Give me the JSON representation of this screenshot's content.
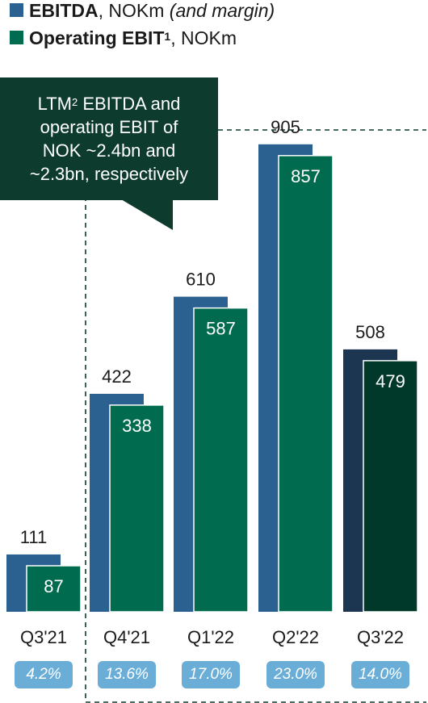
{
  "legend": {
    "ebitda": {
      "bold": "EBITDA",
      "rest": ", NOKm ",
      "italic": "(and margin)",
      "color": "#2b6190"
    },
    "ebit": {
      "bold": "Operating EBIT",
      "sup": "1",
      "rest": ", NOKm",
      "color": "#006b4e"
    }
  },
  "callout": {
    "l1a": "LTM",
    "l1sup": "2",
    "l1b": " EBITDA and",
    "l2": "operating EBIT of",
    "l3": "NOK ~2.4bn and",
    "l4": "~2.3bn, respectively"
  },
  "chart_data": {
    "type": "bar",
    "categories": [
      "Q3'21",
      "Q4'21",
      "Q1'22",
      "Q2'22",
      "Q3'22"
    ],
    "series": [
      {
        "name": "EBITDA",
        "values": [
          111,
          422,
          610,
          905,
          508
        ]
      },
      {
        "name": "Operating EBIT",
        "values": [
          87,
          338,
          587,
          857,
          479
        ]
      }
    ],
    "margins": [
      "4.2%",
      "13.6%",
      "17.0%",
      "23.0%",
      "14.0%"
    ],
    "colors": {
      "ebitda": "#2b6190",
      "ebit": "#006b4e",
      "ebitda_highlight": "#1c3550",
      "ebit_highlight": "#00382a",
      "margin_badge": "#6aaed8",
      "callout": "#0d3b2d"
    }
  }
}
